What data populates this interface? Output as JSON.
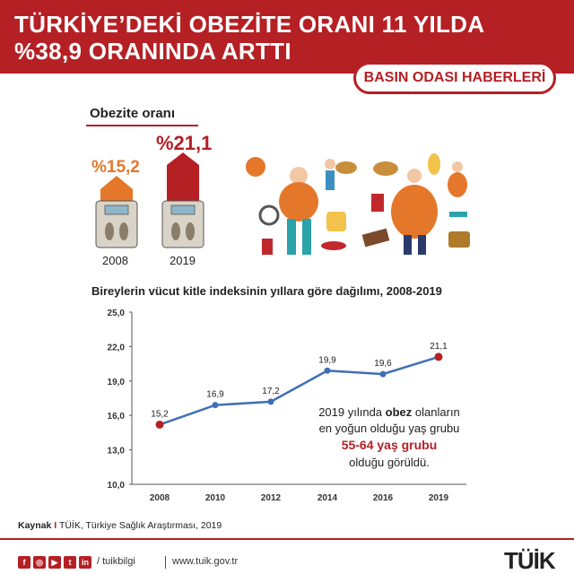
{
  "header": {
    "title_line1": "TÜRKİYE’DEKİ OBEZİTE ORANI 11 YILDA",
    "title_line2": "%38,9 ORANINDA ARTTI",
    "badge": "BASIN ODASI HABERLERİ"
  },
  "obesity": {
    "label": "Obezite oranı",
    "items": [
      {
        "year": "2008",
        "value_label": "%15,2",
        "value": 15.2
      },
      {
        "year": "2019",
        "value_label": "%21,1",
        "value": 21.1
      }
    ]
  },
  "chart_data": {
    "type": "line",
    "title": "Bireylerin vücut kitle indeksinin yıllara göre dağılımı, 2008-2019",
    "xlabel": "",
    "ylabel": "",
    "x": [
      "2008",
      "2010",
      "2012",
      "2014",
      "2016",
      "2019"
    ],
    "values": [
      15.2,
      16.9,
      17.2,
      19.9,
      19.6,
      21.1
    ],
    "value_labels": [
      "15,2",
      "16,9",
      "17,2",
      "19,9",
      "19,6",
      "21,1"
    ],
    "ylim": [
      10,
      25
    ],
    "yticks": [
      "10,0",
      "13,0",
      "16,0",
      "19,0",
      "22,0",
      "25,0"
    ],
    "ytick_values": [
      10,
      13,
      16,
      19,
      22,
      25
    ],
    "grid": false,
    "colors": {
      "line": "#3f6fb5",
      "point": "#c0282d",
      "endpoint": "#b52025"
    },
    "annotation": {
      "line1": "2019 yılında",
      "bold": "obez",
      "line1_end": "olanların",
      "line2": "en yoğun olduğu yaş grubu",
      "highlight": "55-64 yaş grubu",
      "line4": "olduğu görüldü."
    }
  },
  "source": {
    "label": "Kaynak",
    "sep": "I",
    "text": "TÜİK, Türkiye Sağlık Araştırması, 2019"
  },
  "footer": {
    "social_icons": [
      "f",
      "◎",
      "▶",
      "t",
      "in"
    ],
    "handle": "/ tuikbilgi",
    "website": "www.tuik.gov.tr",
    "logo": "TÜİK"
  },
  "colors": {
    "brand": "#b52025",
    "accent_orange": "#e5772b"
  }
}
